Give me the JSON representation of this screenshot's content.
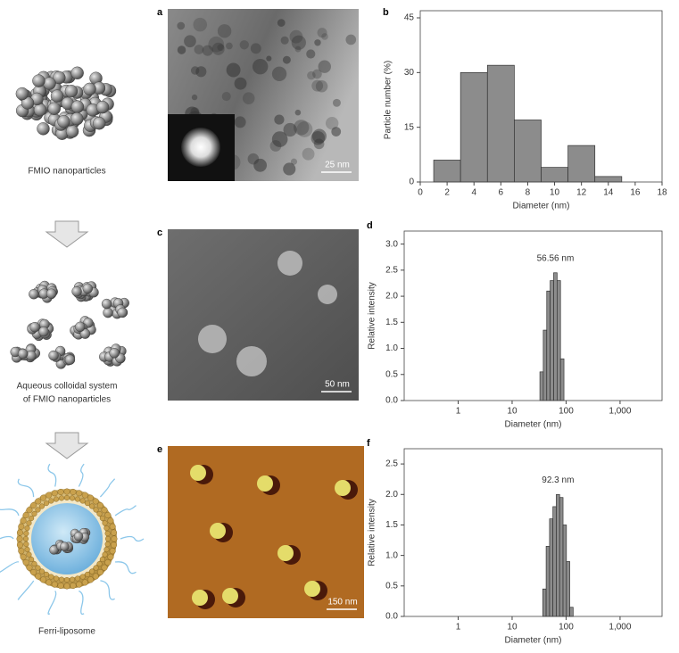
{
  "diagram": {
    "captions": [
      [
        "FMIO nanoparticles"
      ],
      [
        "Aqueous colloidal system",
        "of FMIO nanoparticles"
      ],
      [
        "Ferri-liposome"
      ]
    ]
  },
  "images": [
    {
      "panel": "a",
      "scale_bar": "25 nm"
    },
    {
      "panel": "c",
      "scale_bar": "50 nm"
    },
    {
      "panel": "e",
      "scale_bar": "150 nm"
    }
  ],
  "chart_data": [
    {
      "type": "histogram",
      "panel": "b",
      "xlabel": "Diameter (nm)",
      "ylabel": "Particle number (%)",
      "bins": [
        1,
        3,
        5,
        7,
        9,
        11,
        13,
        15
      ],
      "values": [
        6,
        30,
        32,
        17,
        4,
        10,
        1.5
      ],
      "color": "#8c8c8c",
      "xlim": [
        0,
        18
      ],
      "ylim": [
        0,
        45
      ],
      "xticks": [
        0,
        2,
        4,
        6,
        8,
        10,
        12,
        14,
        16,
        18
      ],
      "yticks": [
        0,
        15,
        30,
        45
      ]
    },
    {
      "type": "histogram",
      "panel": "d",
      "xlabel": "Diameter (nm)",
      "ylabel": "Relative intensity",
      "annotation": "56.56 nm",
      "log_x": true,
      "bins": [
        32.7,
        37.8,
        43.8,
        50.7,
        58.8,
        68.1,
        78.8,
        91.3
      ],
      "values": [
        0.55,
        1.35,
        2.1,
        2.3,
        2.45,
        2.3,
        0.8
      ],
      "color": "#8c8c8c",
      "xlim": [
        0.1,
        6000
      ],
      "ylim": [
        0,
        3.25
      ],
      "xticks": [
        1,
        10,
        100,
        {
          "value": 1000,
          "label": "1,000"
        }
      ],
      "yticks": [
        {
          "value": 0,
          "label": "0.0"
        },
        {
          "value": 0.5,
          "label": "0.5"
        },
        {
          "value": 1,
          "label": "1.0"
        },
        {
          "value": 1.5,
          "label": "1.5"
        },
        {
          "value": 2,
          "label": "2.0"
        },
        {
          "value": 2.5,
          "label": "2.5"
        },
        {
          "value": 3,
          "label": "3.0"
        }
      ]
    },
    {
      "type": "histogram",
      "panel": "f",
      "xlabel": "Diameter (nm)",
      "ylabel": "Relative intensity",
      "annotation": "92.3 nm",
      "log_x": true,
      "bins": [
        37,
        42.7,
        49.4,
        57,
        65.8,
        76,
        87.8,
        101.4,
        117,
        135
      ],
      "values": [
        0.45,
        1.15,
        1.6,
        1.8,
        2.0,
        1.95,
        1.5,
        0.9,
        0.15
      ],
      "color": "#8c8c8c",
      "xlim": [
        0.1,
        6000
      ],
      "ylim": [
        0,
        2.75
      ],
      "xticks": [
        1,
        10,
        100,
        {
          "value": 1000,
          "label": "1,000"
        }
      ],
      "yticks": [
        {
          "value": 0,
          "label": "0.0"
        },
        {
          "value": 0.5,
          "label": "0.5"
        },
        {
          "value": 1,
          "label": "1.0"
        },
        {
          "value": 1.5,
          "label": "1.5"
        },
        {
          "value": 2,
          "label": "2.0"
        },
        {
          "value": 2.5,
          "label": "2.5"
        }
      ]
    }
  ]
}
